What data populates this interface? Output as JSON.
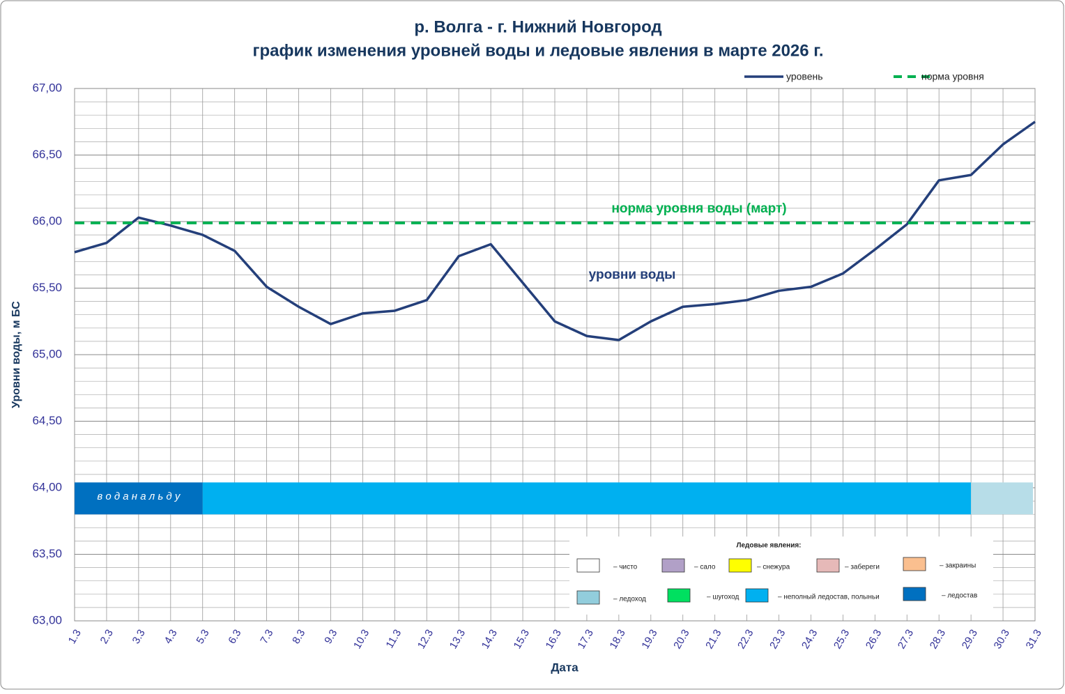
{
  "chart_data": {
    "type": "line",
    "title": "р. Волга - г. Нижний Новгород",
    "subtitle": "график изменения уровней воды и ледовые явления в марте 2026 г.",
    "y_label": "Уровни воды, м БС",
    "x_label": "Дата",
    "categories": [
      "1.3",
      "2.3",
      "3.3",
      "4.3",
      "5.3",
      "6.3",
      "7.3",
      "8.3",
      "9.3",
      "10.3",
      "11.3",
      "12.3",
      "13.3",
      "14.3",
      "15.3",
      "16.3",
      "17.3",
      "18.3",
      "19.3",
      "20.3",
      "21.3",
      "22.3",
      "23.3",
      "24.3",
      "25.3",
      "26.3",
      "27.3",
      "28.3",
      "29.3",
      "30.3",
      "31.3"
    ],
    "series": [
      {
        "name": "уровень",
        "color": "#243f7a",
        "values": [
          65.77,
          65.84,
          66.03,
          65.97,
          65.9,
          65.78,
          65.51,
          65.36,
          65.23,
          65.31,
          65.33,
          65.41,
          65.74,
          65.83,
          65.54,
          65.25,
          65.14,
          65.11,
          65.25,
          65.36,
          65.38,
          65.41,
          65.48,
          65.51,
          65.61,
          65.79,
          65.98,
          66.31,
          66.35,
          66.58,
          66.75
        ]
      },
      {
        "name": "норма уровня",
        "color": "#00b050",
        "dashed": true,
        "values": [
          65.99,
          65.99,
          65.99,
          65.99,
          65.99,
          65.99,
          65.99,
          65.99,
          65.99,
          65.99,
          65.99,
          65.99,
          65.99,
          65.99,
          65.99,
          65.99,
          65.99,
          65.99,
          65.99,
          65.99,
          65.99,
          65.99,
          65.99,
          65.99,
          65.99,
          65.99,
          65.99,
          65.99,
          65.99,
          65.99,
          65.99
        ]
      }
    ],
    "ylim": [
      63,
      67
    ],
    "yticks": [
      {
        "value": 63,
        "label": "63,00"
      },
      {
        "value": 63.5,
        "label": "63,50"
      },
      {
        "value": 64,
        "label": "64,00"
      },
      {
        "value": 64.5,
        "label": "64,50"
      },
      {
        "value": 65,
        "label": "65,00"
      },
      {
        "value": 65.5,
        "label": "65,50"
      },
      {
        "value": 66,
        "label": "66,00"
      },
      {
        "value": 66.5,
        "label": "66,50"
      },
      {
        "value": 67,
        "label": "67,00"
      }
    ],
    "minor_yticks": [
      63.1,
      63.2,
      63.3,
      63.4,
      63.6,
      63.7,
      63.8,
      63.9,
      64.1,
      64.2,
      64.3,
      64.4,
      64.6,
      64.7,
      64.8,
      64.9,
      65.1,
      65.2,
      65.3,
      65.4,
      65.6,
      65.7,
      65.8,
      65.9,
      66.1,
      66.2,
      66.3,
      66.4,
      66.6,
      66.7,
      66.8,
      66.9
    ],
    "grid": true,
    "annotations": [
      {
        "text": "норма уровня воды  (март)",
        "color": "#00b050"
      },
      {
        "text": "уровни воды",
        "color": "#243f7a"
      }
    ],
    "ice_band_range": [
      63.8,
      64.04
    ],
    "ice_bands": [
      {
        "from": "1.3",
        "to": "5.3",
        "color": "#0070c0",
        "label": "в о д а  н а  л ь д у"
      },
      {
        "from": "5.3",
        "to": "29.3",
        "color": "#00b0f0"
      },
      {
        "from": "29.3",
        "to": "31.3",
        "color": "#b7dde8"
      }
    ],
    "ice_legend": {
      "title": "Ледовые явления:",
      "items": [
        {
          "label": "– чисто",
          "color": "#ffffff"
        },
        {
          "label": "– сало",
          "color": "#b1a0c7"
        },
        {
          "label": "– снежура",
          "color": "#ffff00"
        },
        {
          "label": "– забереги",
          "color": "#e6b9b8"
        },
        {
          "label": "– закраины",
          "color": "#fabf8f"
        },
        {
          "label": "– ледоход",
          "color": "#92cddc"
        },
        {
          "label": "– шугоход",
          "color": "#00e060"
        },
        {
          "label": "– неполный ледостав, полыньи",
          "color": "#00b0f0"
        },
        {
          "label": "– ледостав",
          "color": "#0070c0"
        }
      ]
    }
  }
}
